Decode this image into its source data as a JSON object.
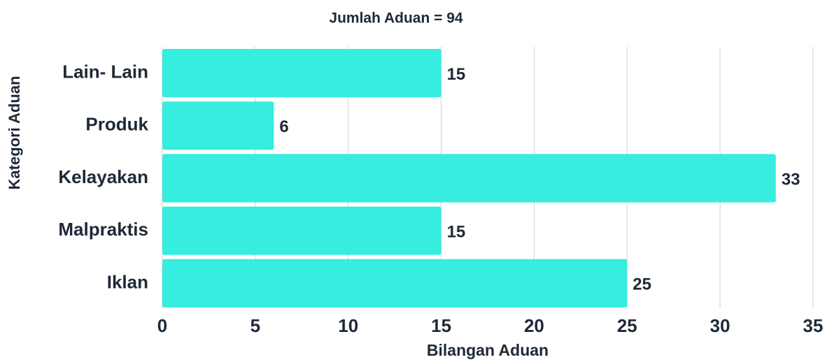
{
  "chart_data": {
    "type": "bar",
    "orientation": "horizontal",
    "title": "Jumlah Aduan = 94",
    "x_label": "Bilangan Aduan",
    "y_label": "Kategori Aduan",
    "categories": [
      "Lain- Lain",
      "Produk",
      "Kelayakan",
      "Malpraktis",
      "Iklan"
    ],
    "values": [
      15,
      6,
      33,
      15,
      25
    ],
    "color": "#36ede0",
    "xlim": [
      0,
      35
    ],
    "xticks": [
      0,
      5,
      10,
      15,
      20,
      25,
      30,
      35
    ],
    "grid": true
  }
}
